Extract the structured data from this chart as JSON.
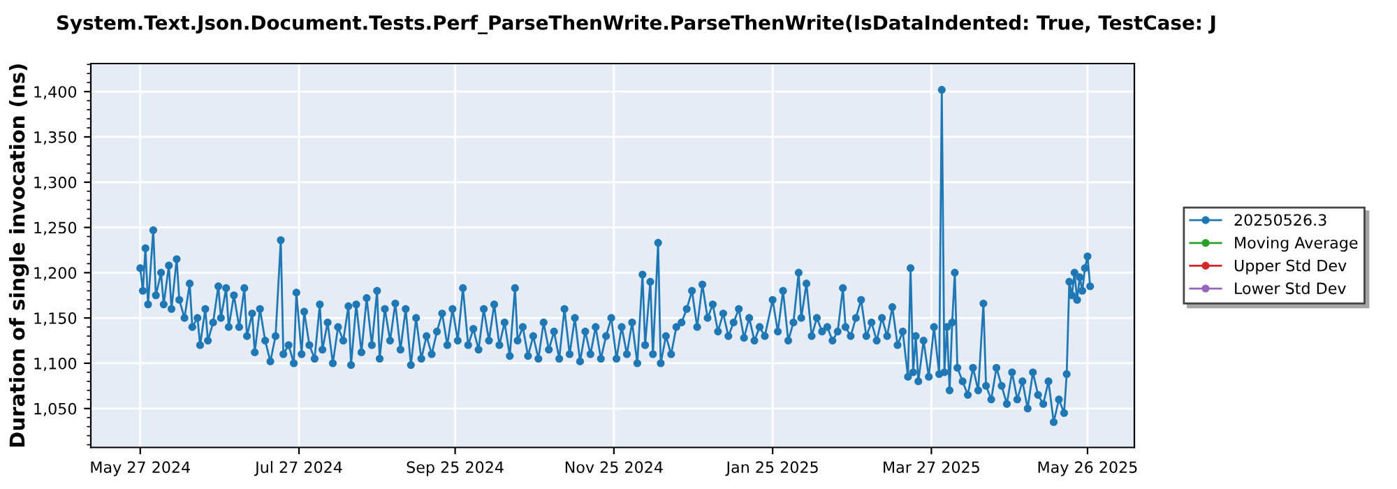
{
  "chart_data": {
    "type": "line",
    "title": "System.Text.Json.Document.Tests.Perf_ParseThenWrite.ParseThenWrite(IsDataIndented: True, TestCase: J",
    "ylabel": "Duration of single invocation (ns)",
    "x": [
      "2024-05-27",
      "2024-05-28",
      "2024-05-29",
      "2024-05-30",
      "2024-06-01",
      "2024-06-02",
      "2024-06-04",
      "2024-06-05",
      "2024-06-07",
      "2024-06-08",
      "2024-06-10",
      "2024-06-11",
      "2024-06-13",
      "2024-06-15",
      "2024-06-16",
      "2024-06-18",
      "2024-06-19",
      "2024-06-21",
      "2024-06-22",
      "2024-06-24",
      "2024-06-26",
      "2024-06-27",
      "2024-06-29",
      "2024-06-30",
      "2024-07-02",
      "2024-07-04",
      "2024-07-06",
      "2024-07-07",
      "2024-07-09",
      "2024-07-10",
      "2024-07-12",
      "2024-07-14",
      "2024-07-16",
      "2024-07-18",
      "2024-07-20",
      "2024-07-21",
      "2024-07-23",
      "2024-07-25",
      "2024-07-26",
      "2024-07-28",
      "2024-07-29",
      "2024-07-31",
      "2024-08-02",
      "2024-08-04",
      "2024-08-05",
      "2024-08-07",
      "2024-08-09",
      "2024-08-11",
      "2024-08-13",
      "2024-08-15",
      "2024-08-16",
      "2024-08-18",
      "2024-08-20",
      "2024-08-22",
      "2024-08-24",
      "2024-08-26",
      "2024-08-27",
      "2024-08-29",
      "2024-08-31",
      "2024-09-02",
      "2024-09-04",
      "2024-09-06",
      "2024-09-08",
      "2024-09-10",
      "2024-09-12",
      "2024-09-14",
      "2024-09-16",
      "2024-09-18",
      "2024-09-20",
      "2024-09-22",
      "2024-09-24",
      "2024-09-26",
      "2024-09-28",
      "2024-09-30",
      "2024-10-02",
      "2024-10-04",
      "2024-10-06",
      "2024-10-08",
      "2024-10-10",
      "2024-10-12",
      "2024-10-14",
      "2024-10-16",
      "2024-10-18",
      "2024-10-19",
      "2024-10-21",
      "2024-10-23",
      "2024-10-25",
      "2024-10-27",
      "2024-10-29",
      "2024-10-31",
      "2024-11-02",
      "2024-11-04",
      "2024-11-06",
      "2024-11-08",
      "2024-11-10",
      "2024-11-12",
      "2024-11-14",
      "2024-11-16",
      "2024-11-18",
      "2024-11-20",
      "2024-11-22",
      "2024-11-24",
      "2024-11-26",
      "2024-11-28",
      "2024-11-30",
      "2024-12-02",
      "2024-12-04",
      "2024-12-06",
      "2024-12-07",
      "2024-12-09",
      "2024-12-10",
      "2024-12-12",
      "2024-12-13",
      "2024-12-15",
      "2024-12-17",
      "2024-12-19",
      "2024-12-21",
      "2024-12-23",
      "2024-12-25",
      "2024-12-27",
      "2024-12-29",
      "2024-12-31",
      "2025-01-02",
      "2025-01-04",
      "2025-01-06",
      "2025-01-08",
      "2025-01-10",
      "2025-01-12",
      "2025-01-14",
      "2025-01-16",
      "2025-01-18",
      "2025-01-20",
      "2025-01-22",
      "2025-01-25",
      "2025-01-27",
      "2025-01-29",
      "2025-01-31",
      "2025-02-02",
      "2025-02-04",
      "2025-02-05",
      "2025-02-07",
      "2025-02-09",
      "2025-02-11",
      "2025-02-13",
      "2025-02-15",
      "2025-02-17",
      "2025-02-19",
      "2025-02-21",
      "2025-02-22",
      "2025-02-24",
      "2025-02-26",
      "2025-02-28",
      "2025-03-02",
      "2025-03-04",
      "2025-03-06",
      "2025-03-08",
      "2025-03-10",
      "2025-03-12",
      "2025-03-14",
      "2025-03-16",
      "2025-03-18",
      "2025-03-19",
      "2025-03-20",
      "2025-03-21",
      "2025-03-22",
      "2025-03-24",
      "2025-03-26",
      "2025-03-28",
      "2025-03-30",
      "2025-03-31",
      "2025-04-01",
      "2025-04-02",
      "2025-04-03",
      "2025-04-04",
      "2025-04-05",
      "2025-04-06",
      "2025-04-08",
      "2025-04-10",
      "2025-04-12",
      "2025-04-14",
      "2025-04-16",
      "2025-04-17",
      "2025-04-19",
      "2025-04-21",
      "2025-04-23",
      "2025-04-25",
      "2025-04-27",
      "2025-04-29",
      "2025-05-01",
      "2025-05-03",
      "2025-05-05",
      "2025-05-07",
      "2025-05-09",
      "2025-05-11",
      "2025-05-13",
      "2025-05-15",
      "2025-05-17",
      "2025-05-18",
      "2025-05-19",
      "2025-05-20",
      "2025-05-21",
      "2025-05-22",
      "2025-05-23",
      "2025-05-24",
      "2025-05-25",
      "2025-05-26",
      "2025-05-27"
    ],
    "series": [
      {
        "name": "20250526.3",
        "color": "#1f77b4",
        "values": [
          1205,
          1180,
          1227,
          1165,
          1247,
          1175,
          1200,
          1165,
          1208,
          1160,
          1215,
          1170,
          1150,
          1188,
          1140,
          1150,
          1120,
          1160,
          1125,
          1145,
          1185,
          1150,
          1183,
          1140,
          1175,
          1140,
          1183,
          1130,
          1155,
          1112,
          1160,
          1125,
          1102,
          1130,
          1236,
          1110,
          1120,
          1100,
          1178,
          1110,
          1157,
          1120,
          1105,
          1165,
          1115,
          1145,
          1100,
          1140,
          1125,
          1163,
          1098,
          1165,
          1112,
          1172,
          1120,
          1180,
          1105,
          1160,
          1125,
          1166,
          1115,
          1160,
          1098,
          1150,
          1105,
          1130,
          1110,
          1135,
          1155,
          1120,
          1160,
          1125,
          1183,
          1120,
          1138,
          1115,
          1160,
          1125,
          1165,
          1120,
          1145,
          1108,
          1183,
          1125,
          1140,
          1108,
          1130,
          1105,
          1145,
          1115,
          1135,
          1105,
          1160,
          1110,
          1150,
          1102,
          1135,
          1110,
          1140,
          1105,
          1130,
          1150,
          1105,
          1140,
          1110,
          1145,
          1100,
          1198,
          1120,
          1190,
          1110,
          1233,
          1100,
          1130,
          1110,
          1140,
          1145,
          1160,
          1180,
          1140,
          1187,
          1150,
          1165,
          1135,
          1155,
          1130,
          1145,
          1160,
          1128,
          1150,
          1125,
          1140,
          1130,
          1170,
          1135,
          1180,
          1125,
          1145,
          1200,
          1150,
          1188,
          1130,
          1150,
          1135,
          1140,
          1125,
          1135,
          1183,
          1140,
          1130,
          1150,
          1170,
          1130,
          1145,
          1125,
          1150,
          1130,
          1162,
          1120,
          1135,
          1085,
          1205,
          1090,
          1130,
          1080,
          1125,
          1085,
          1140,
          1088,
          1402,
          1090,
          1140,
          1070,
          1145,
          1200,
          1095,
          1080,
          1065,
          1095,
          1070,
          1166,
          1075,
          1060,
          1095,
          1075,
          1055,
          1090,
          1060,
          1080,
          1050,
          1090,
          1065,
          1055,
          1080,
          1035,
          1060,
          1045,
          1088,
          1190,
          1175,
          1200,
          1170,
          1195,
          1180,
          1205,
          1218,
          1185
        ]
      },
      {
        "name": "Moving Average",
        "color": "#2ca02c",
        "values": [
          null,
          null,
          null,
          null,
          null,
          null,
          null,
          null,
          null,
          null,
          null,
          null,
          null,
          null,
          null,
          null,
          null,
          null,
          null,
          null,
          null,
          null,
          null,
          null,
          null,
          null,
          null,
          null,
          null,
          null,
          null,
          null,
          null,
          null,
          null,
          null,
          null,
          null,
          null,
          null,
          null,
          null,
          null,
          null,
          null,
          null,
          null,
          null,
          null,
          null,
          null,
          null,
          null,
          null,
          null,
          null,
          null,
          null,
          null,
          null,
          null,
          null,
          null,
          null,
          null,
          null,
          null,
          null,
          null,
          null,
          null,
          null,
          null,
          null,
          null,
          null,
          null,
          null,
          null,
          null,
          null,
          null,
          null,
          null,
          null,
          null,
          null,
          null,
          null,
          null,
          null,
          null,
          null,
          null,
          null,
          null,
          null,
          null,
          null,
          null,
          null,
          null,
          null,
          null,
          null,
          null,
          null,
          null,
          null,
          null,
          null,
          null,
          null,
          null,
          null,
          null,
          null,
          null,
          null,
          null,
          null,
          null,
          null,
          null,
          null,
          null,
          null,
          null,
          null,
          null,
          null,
          null,
          null,
          null,
          null,
          null,
          null,
          null,
          null,
          null,
          null,
          null,
          null,
          null,
          null,
          null,
          null,
          null,
          null,
          null,
          null,
          null,
          null,
          null,
          null,
          null,
          null,
          null,
          null,
          null,
          null,
          null,
          null,
          null,
          null,
          null,
          null,
          null,
          null,
          null,
          null,
          null,
          null,
          null,
          null,
          null,
          null,
          null,
          null,
          null,
          null,
          null,
          null,
          null,
          null,
          null,
          null,
          null,
          null,
          null,
          null,
          null,
          null,
          null,
          null,
          null,
          null,
          null,
          null,
          null,
          null,
          null,
          null,
          null,
          null,
          null,
          null
        ]
      },
      {
        "name": "Upper Std Dev",
        "color": "#d62728",
        "values": [
          null,
          null,
          null,
          null,
          null,
          null,
          null,
          null,
          null,
          null,
          null,
          null,
          null,
          null,
          null,
          null,
          null,
          null,
          null,
          null,
          null,
          null,
          null,
          null,
          null,
          null,
          null,
          null,
          null,
          null,
          null,
          null,
          null,
          null,
          null,
          null,
          null,
          null,
          null,
          null,
          null,
          null,
          null,
          null,
          null,
          null,
          null,
          null,
          null,
          null,
          null,
          null,
          null,
          null,
          null,
          null,
          null,
          null,
          null,
          null,
          null,
          null,
          null,
          null,
          null,
          null,
          null,
          null,
          null,
          null,
          null,
          null,
          null,
          null,
          null,
          null,
          null,
          null,
          null,
          null,
          null,
          null,
          null,
          null,
          null,
          null,
          null,
          null,
          null,
          null,
          null,
          null,
          null,
          null,
          null,
          null,
          null,
          null,
          null,
          null,
          null,
          null,
          null,
          null,
          null,
          null,
          null,
          null,
          null,
          null,
          null,
          null,
          null,
          null,
          null,
          null,
          null,
          null,
          null,
          null,
          null,
          null,
          null,
          null,
          null,
          null,
          null,
          null,
          null,
          null,
          null,
          null,
          null,
          null,
          null,
          null,
          null,
          null,
          null,
          null,
          null,
          null,
          null,
          null,
          null,
          null,
          null,
          null,
          null,
          null,
          null,
          null,
          null,
          null,
          null,
          null,
          null,
          null,
          null,
          null,
          null,
          null,
          null,
          null,
          null,
          null,
          null,
          null,
          null,
          null,
          null,
          null,
          null,
          null,
          null,
          null,
          null,
          null,
          null,
          null,
          null,
          null,
          null,
          null,
          null,
          null,
          null,
          null,
          null,
          null,
          null,
          null,
          null,
          null,
          null,
          null,
          null,
          null,
          null,
          null,
          null,
          null,
          null,
          null,
          null,
          null,
          null
        ]
      },
      {
        "name": "Lower Std Dev",
        "color": "#9467bd",
        "values": [
          null,
          null,
          null,
          null,
          null,
          null,
          null,
          null,
          null,
          null,
          null,
          null,
          null,
          null,
          null,
          null,
          null,
          null,
          null,
          null,
          null,
          null,
          null,
          null,
          null,
          null,
          null,
          null,
          null,
          null,
          null,
          null,
          null,
          null,
          null,
          null,
          null,
          null,
          null,
          null,
          null,
          null,
          null,
          null,
          null,
          null,
          null,
          null,
          null,
          null,
          null,
          null,
          null,
          null,
          null,
          null,
          null,
          null,
          null,
          null,
          null,
          null,
          null,
          null,
          null,
          null,
          null,
          null,
          null,
          null,
          null,
          null,
          null,
          null,
          null,
          null,
          null,
          null,
          null,
          null,
          null,
          null,
          null,
          null,
          null,
          null,
          null,
          null,
          null,
          null,
          null,
          null,
          null,
          null,
          null,
          null,
          null,
          null,
          null,
          null,
          null,
          null,
          null,
          null,
          null,
          null,
          null,
          null,
          null,
          null,
          null,
          null,
          null,
          null,
          null,
          null,
          null,
          null,
          null,
          null,
          null,
          null,
          null,
          null,
          null,
          null,
          null,
          null,
          null,
          null,
          null,
          null,
          null,
          null,
          null,
          null,
          null,
          null,
          null,
          null,
          null,
          null,
          null,
          null,
          null,
          null,
          null,
          null,
          null,
          null,
          null,
          null,
          null,
          null,
          null,
          null,
          null,
          null,
          null,
          null,
          null,
          null,
          null,
          null,
          null,
          null,
          null,
          null,
          null,
          null,
          null,
          null,
          null,
          null,
          null,
          null,
          null,
          null,
          null,
          null,
          null,
          null,
          null,
          null,
          null,
          null,
          null,
          null,
          null,
          null,
          null,
          null,
          null,
          null,
          null,
          null,
          null,
          null,
          null,
          null,
          null,
          null,
          null,
          null,
          null,
          null,
          null
        ]
      }
    ],
    "xlim": [
      "2024-05-08",
      "2025-06-13"
    ],
    "xticks": [
      {
        "value": "2024-05-27",
        "label": "May 27 2024"
      },
      {
        "value": "2024-07-27",
        "label": "Jul 27 2024"
      },
      {
        "value": "2024-09-25",
        "label": "Sep 25 2024"
      },
      {
        "value": "2024-11-25",
        "label": "Nov 25 2024"
      },
      {
        "value": "2025-01-25",
        "label": "Jan 25 2025"
      },
      {
        "value": "2025-03-27",
        "label": "Mar 27 2025"
      },
      {
        "value": "2025-05-26",
        "label": "May 26 2025"
      }
    ],
    "ylim": [
      1007,
      1431
    ],
    "yticks": [
      {
        "value": 1050,
        "label": "1,050"
      },
      {
        "value": 1100,
        "label": "1,100"
      },
      {
        "value": 1150,
        "label": "1,150"
      },
      {
        "value": 1200,
        "label": "1,200"
      },
      {
        "value": 1250,
        "label": "1,250"
      },
      {
        "value": 1300,
        "label": "1,300"
      },
      {
        "value": 1350,
        "label": "1,350"
      },
      {
        "value": 1400,
        "label": "1,400"
      }
    ],
    "grid": true,
    "legend": "right",
    "marker": "circle",
    "line_style": "solid"
  }
}
